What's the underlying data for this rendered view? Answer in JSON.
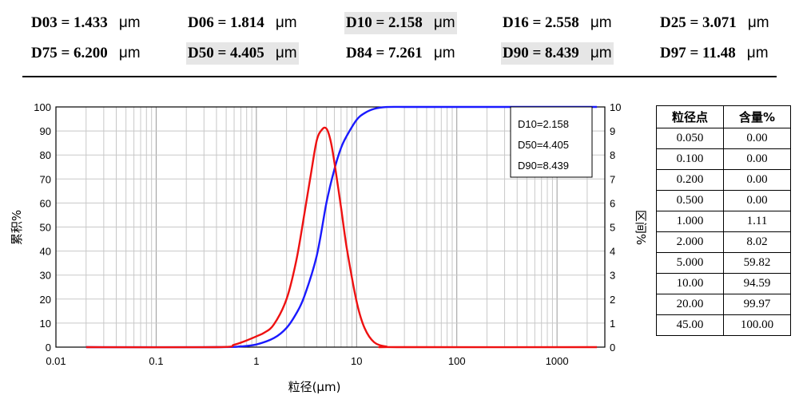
{
  "stats": [
    {
      "label": "D03 = 1.433",
      "unit": "μm",
      "highlight": false
    },
    {
      "label": "D06 = 1.814",
      "unit": "μm",
      "highlight": false
    },
    {
      "label": "D10 = 2.158",
      "unit": "μm",
      "highlight": true
    },
    {
      "label": "D16 = 2.558",
      "unit": "μm",
      "highlight": false
    },
    {
      "label": "D25 = 3.071",
      "unit": "μm",
      "highlight": false
    },
    {
      "label": "D75 = 6.200",
      "unit": "μm",
      "highlight": false
    },
    {
      "label": "D50 = 4.405",
      "unit": "μm",
      "highlight": true
    },
    {
      "label": "D84 = 7.261",
      "unit": "μm",
      "highlight": false
    },
    {
      "label": "D90 = 8.439",
      "unit": "μm",
      "highlight": true
    },
    {
      "label": "D97 = 11.48",
      "unit": "μm",
      "highlight": false
    }
  ],
  "table": {
    "headers": [
      "粒径点",
      "含量%"
    ],
    "rows": [
      [
        "0.050",
        "0.00"
      ],
      [
        "0.100",
        "0.00"
      ],
      [
        "0.200",
        "0.00"
      ],
      [
        "0.500",
        "0.00"
      ],
      [
        "1.000",
        "1.11"
      ],
      [
        "2.000",
        "8.02"
      ],
      [
        "5.000",
        "59.82"
      ],
      [
        "10.00",
        "94.59"
      ],
      [
        "20.00",
        "99.97"
      ],
      [
        "45.00",
        "100.00"
      ]
    ]
  },
  "chart_data": {
    "type": "line",
    "xlabel": "粒径(μm)",
    "ylabel_left": "累积%",
    "ylabel_right": "区间%",
    "xscale": "log",
    "xlim": [
      0.01,
      3000
    ],
    "ylim_left": [
      0,
      100
    ],
    "ylim_right": [
      0,
      10
    ],
    "x_ticks": [
      "0.01",
      "0.1",
      "1",
      "10",
      "100",
      "1000"
    ],
    "y_left_ticks": [
      "0",
      "10",
      "20",
      "30",
      "40",
      "50",
      "60",
      "70",
      "80",
      "90",
      "100"
    ],
    "y_right_ticks": [
      "0",
      "1",
      "2",
      "3",
      "4",
      "5",
      "6",
      "7",
      "8",
      "9",
      "10"
    ],
    "grid": true,
    "legend_box": {
      "lines": [
        "D10=2.158",
        "D50=4.405",
        "D90=8.439"
      ],
      "placement": "top-right"
    },
    "series": [
      {
        "name": "累积%",
        "axis": "left",
        "color": "#1a1aff",
        "x": [
          0.02,
          0.4,
          0.7,
          1,
          1.5,
          2,
          2.5,
          3,
          4,
          5,
          6,
          7,
          8,
          10,
          12,
          15,
          20,
          30,
          45,
          2500
        ],
        "y": [
          0,
          0,
          0.3,
          1.1,
          3.8,
          8,
          14,
          21,
          38,
          60,
          74,
          83,
          88,
          94.6,
          97.4,
          99.2,
          99.97,
          100,
          100,
          100
        ]
      },
      {
        "name": "区间%",
        "axis": "right",
        "color": "#ee1111",
        "x": [
          0.02,
          0.4,
          0.6,
          0.8,
          1,
          1.2,
          1.5,
          2,
          2.5,
          3,
          3.5,
          4,
          4.5,
          5,
          5.5,
          6,
          7,
          8,
          10,
          12,
          15,
          20,
          25,
          2500
        ],
        "y": [
          0,
          0,
          0.1,
          0.28,
          0.45,
          0.6,
          0.95,
          2.0,
          3.6,
          5.5,
          7.2,
          8.6,
          9.05,
          9.1,
          8.6,
          7.7,
          5.8,
          4.1,
          1.9,
          0.8,
          0.2,
          0.02,
          0,
          0
        ]
      }
    ]
  }
}
